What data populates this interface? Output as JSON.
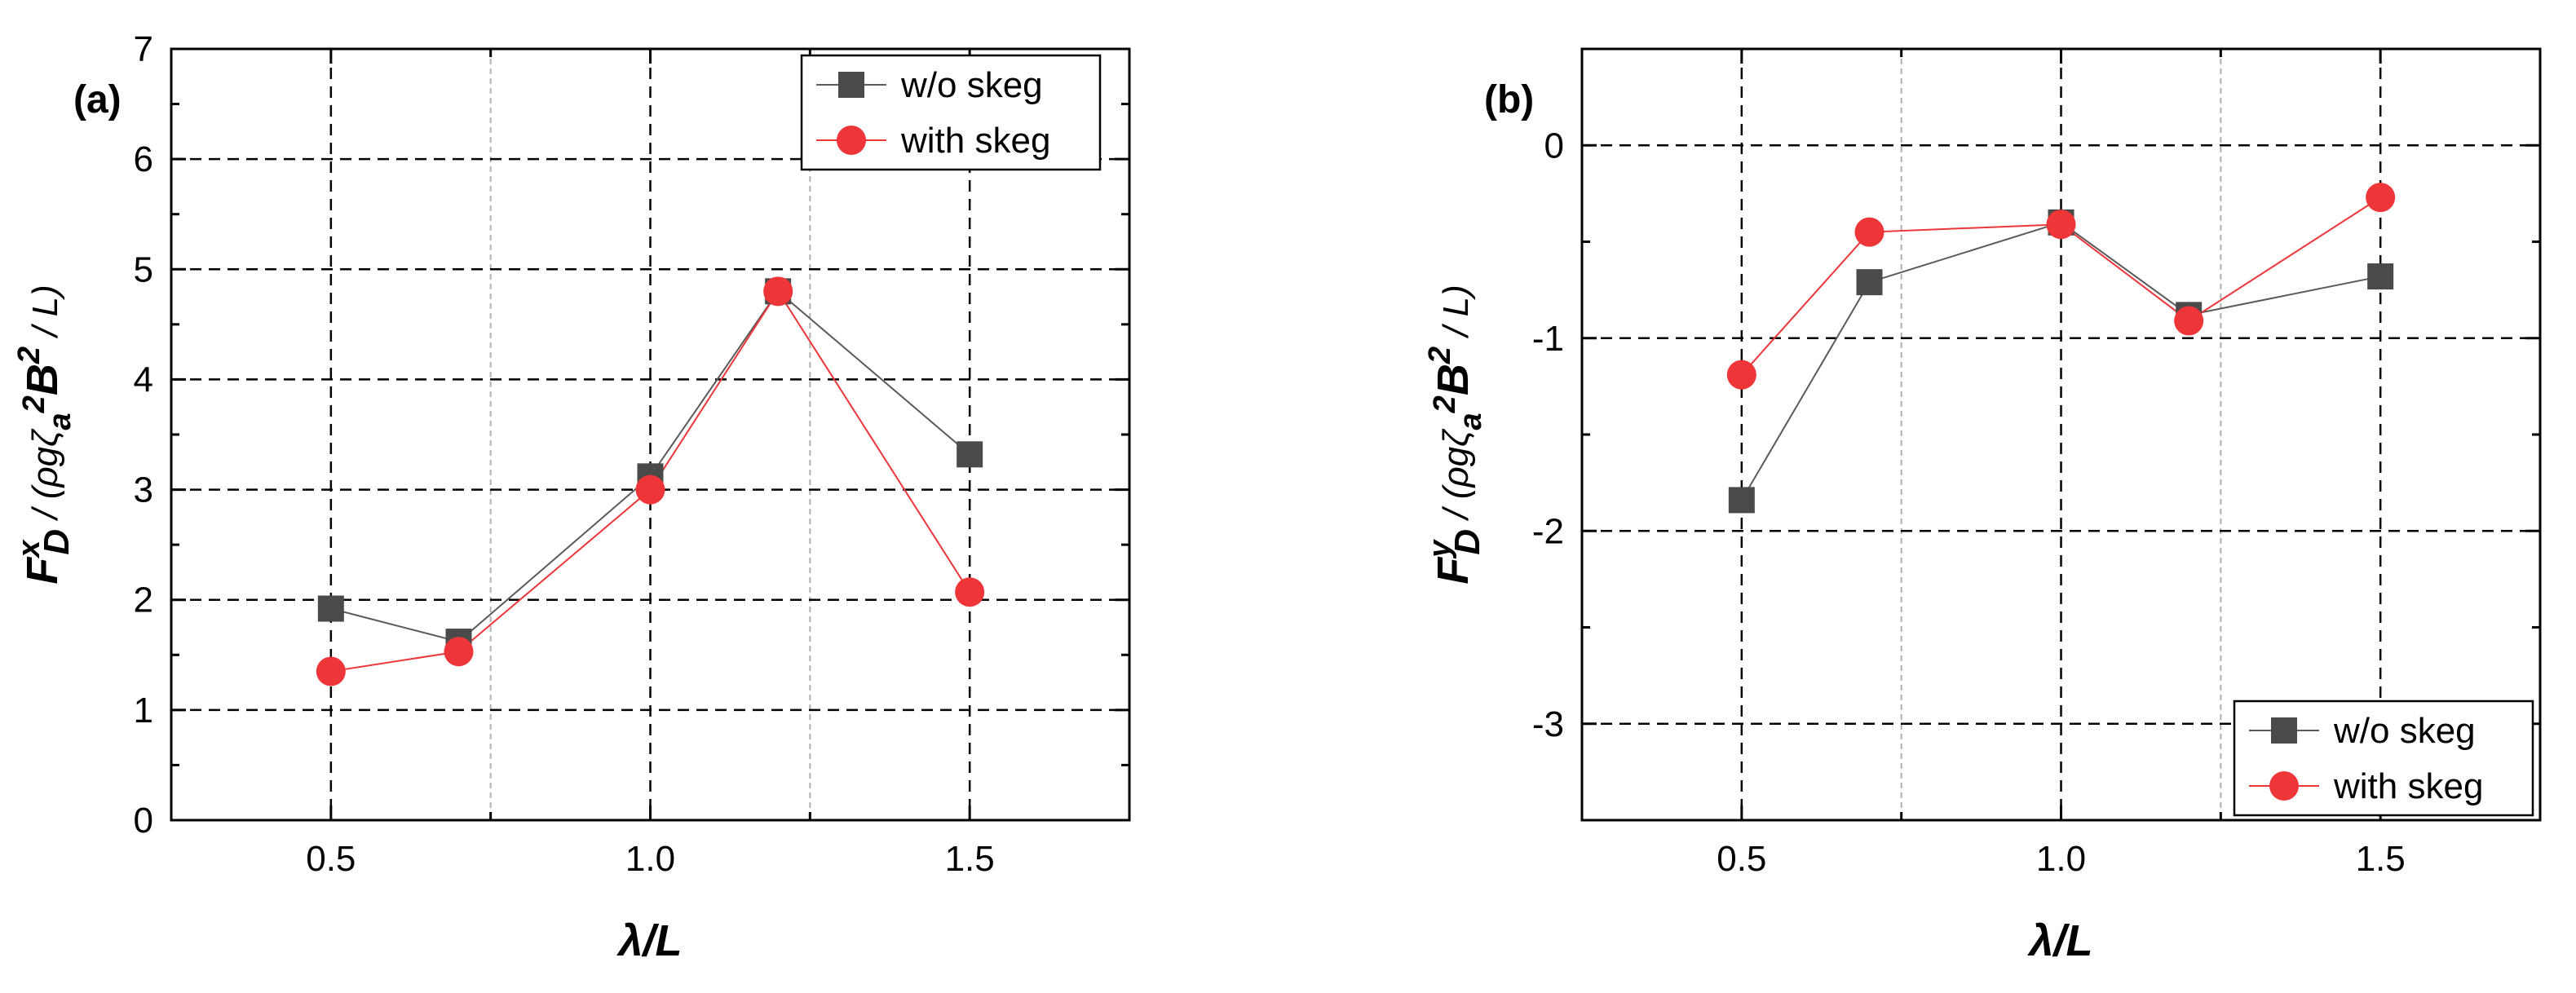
{
  "style": {
    "series_colors": [
      "#4a4a4a",
      "#ee3538"
    ],
    "line_colors": [
      "#5a5a5a",
      "#ee3538"
    ],
    "grid_color": "#000000",
    "minor_grid_color": "#b0b0b0"
  },
  "chart_data": [
    {
      "type": "line",
      "panel_label": "(a)",
      "xlabel": "λ/L",
      "ylabel": {
        "base": "F",
        "sup1": "x",
        "sub1": "D",
        "mid": " / (ρgζ",
        "sub2": "a",
        "sup2": "2",
        "tail": "B",
        "sup3": "2",
        "end": " / L)"
      },
      "xlim": [
        0.25,
        1.75
      ],
      "ylim": [
        0,
        7
      ],
      "x_ticks": [
        0.5,
        1.0,
        1.5
      ],
      "x_tick_labels": [
        "0.5",
        "1.0",
        "1.5"
      ],
      "x_minor_gridlines": [
        0.75,
        1.25
      ],
      "y_ticks": [
        0,
        1,
        2,
        3,
        4,
        5,
        6,
        7
      ],
      "y_tick_labels": [
        "0",
        "1",
        "2",
        "3",
        "4",
        "5",
        "6",
        "7"
      ],
      "y_gridlines": [
        1,
        2,
        3,
        4,
        5,
        6
      ],
      "legend_position": "top-right",
      "series": [
        {
          "name": "w/o skeg",
          "marker": "square",
          "x": [
            0.5,
            0.7,
            1.0,
            1.2,
            1.5
          ],
          "y": [
            1.92,
            1.62,
            3.12,
            4.8,
            3.32
          ]
        },
        {
          "name": "with skeg",
          "marker": "circle",
          "x": [
            0.5,
            0.7,
            1.0,
            1.2,
            1.5
          ],
          "y": [
            1.35,
            1.53,
            3.0,
            4.8,
            2.07
          ]
        }
      ]
    },
    {
      "type": "line",
      "panel_label": "(b)",
      "xlabel": "λ/L",
      "ylabel": {
        "base": "F",
        "sup1": "y",
        "sub1": "D",
        "mid": " / (ρgζ",
        "sub2": "a",
        "sup2": "2",
        "tail": "B",
        "sup3": "2",
        "end": " / L)"
      },
      "xlim": [
        0.25,
        1.75
      ],
      "ylim": [
        -3.5,
        0.5
      ],
      "x_ticks": [
        0.5,
        1.0,
        1.5
      ],
      "x_tick_labels": [
        "0.5",
        "1.0",
        "1.5"
      ],
      "x_minor_gridlines": [
        0.75,
        1.25
      ],
      "y_ticks": [
        -3,
        -2,
        -1,
        0
      ],
      "y_tick_labels": [
        "-3",
        "-2",
        "-1",
        "0"
      ],
      "y_gridlines": [
        -3,
        -2,
        -1,
        0
      ],
      "legend_position": "bottom-right",
      "series": [
        {
          "name": "w/o skeg",
          "marker": "square",
          "x": [
            0.5,
            0.7,
            1.0,
            1.2,
            1.5
          ],
          "y": [
            -1.84,
            -0.71,
            -0.4,
            -0.88,
            -0.68
          ]
        },
        {
          "name": "with skeg",
          "marker": "circle",
          "x": [
            0.5,
            0.7,
            1.0,
            1.2,
            1.5
          ],
          "y": [
            -1.19,
            -0.45,
            -0.41,
            -0.91,
            -0.27
          ]
        }
      ]
    }
  ]
}
